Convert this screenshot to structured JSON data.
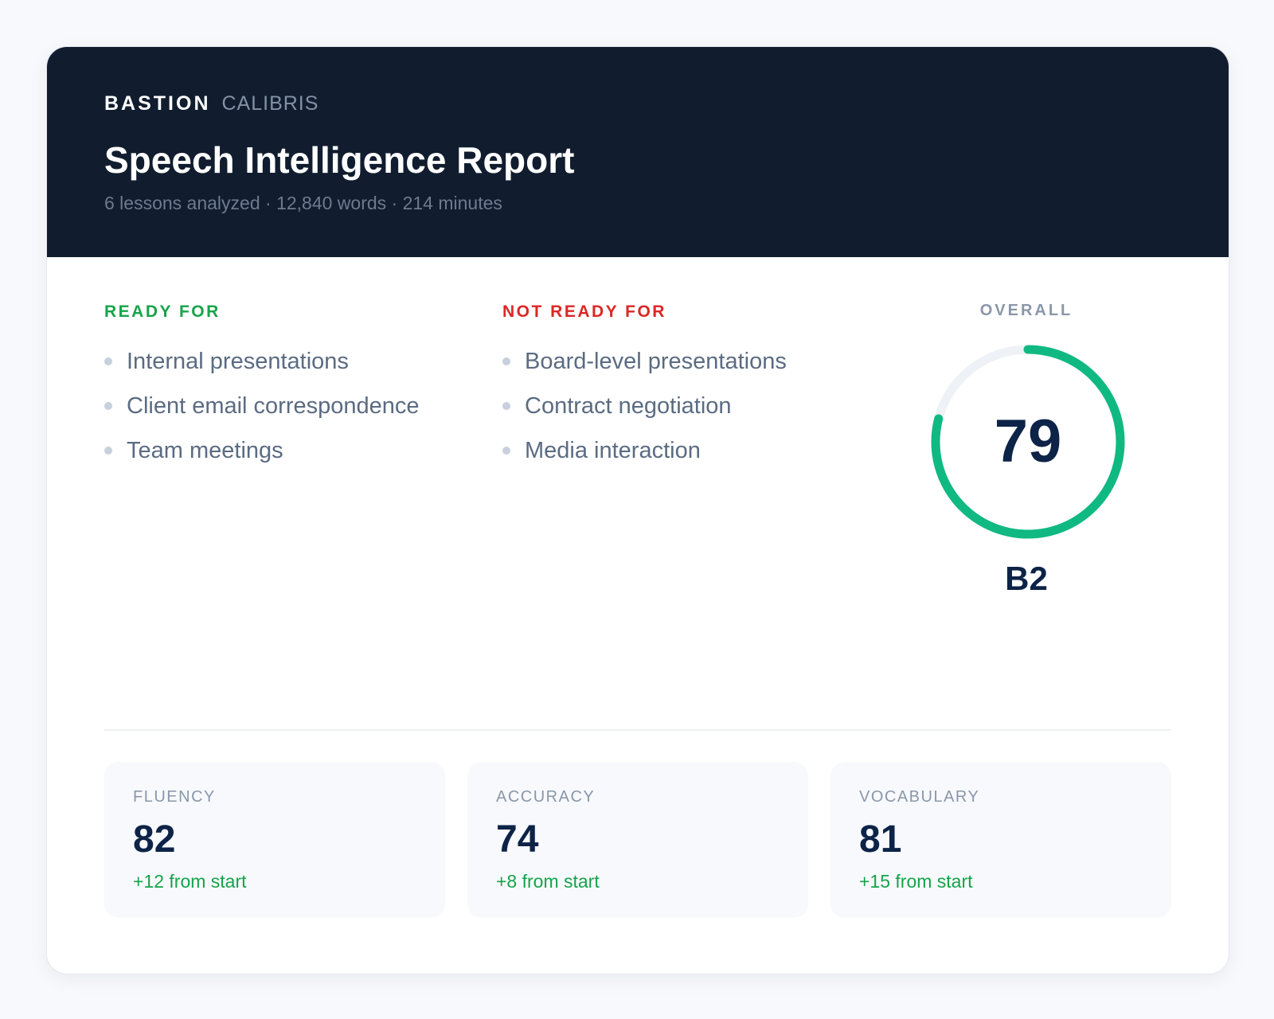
{
  "brand": {
    "primary": "BASTION",
    "secondary": "CALIBRIS"
  },
  "report": {
    "title": "Speech Intelligence Report",
    "meta": "6 lessons analyzed · 12,840 words · 214 minutes"
  },
  "ready": {
    "heading": "READY FOR",
    "items": [
      "Internal presentations",
      "Client email correspondence",
      "Team meetings"
    ]
  },
  "not_ready": {
    "heading": "NOT READY FOR",
    "items": [
      "Board-level presentations",
      "Contract negotiation",
      "Media interaction"
    ]
  },
  "overall": {
    "label": "OVERALL",
    "score": "79",
    "score_value": 79,
    "score_max": 100,
    "level": "B2"
  },
  "metrics": [
    {
      "label": "FLUENCY",
      "value": "82",
      "change": "+12 from start"
    },
    {
      "label": "ACCURACY",
      "value": "74",
      "change": "+8 from start"
    },
    {
      "label": "VOCABULARY",
      "value": "81",
      "change": "+15 from start"
    }
  ],
  "colors": {
    "header_bg": "#111d2f",
    "ready": "#17a34a",
    "not_ready": "#dc2626",
    "gauge": "#10b981",
    "gauge_track": "#eef1f6",
    "score_text": "#0d2347",
    "positive_change": "#16a34a"
  }
}
